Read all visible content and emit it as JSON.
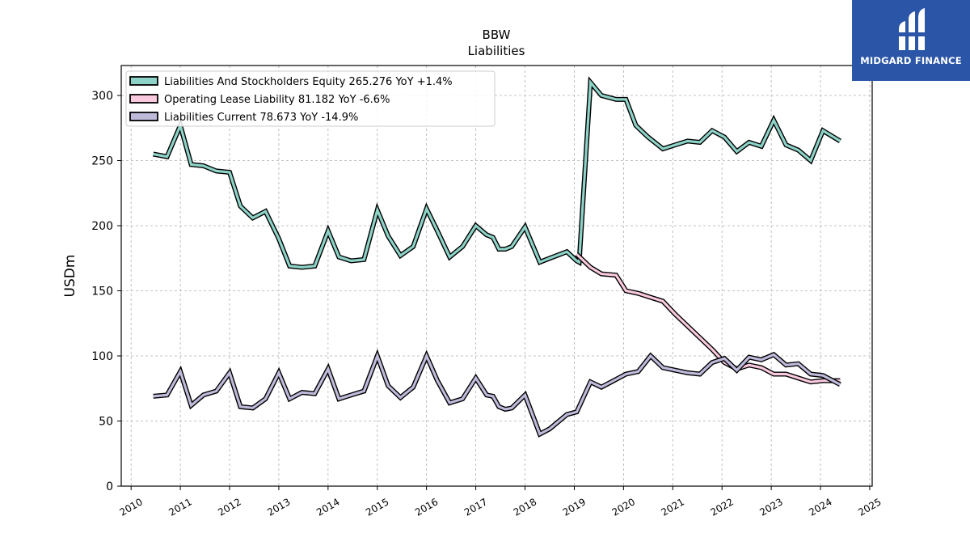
{
  "brand": {
    "name": "MIDGARD FINANCE",
    "icon": "midgard-logo-icon",
    "color": "#2b56a7"
  },
  "chart_data": {
    "type": "line",
    "title": "BBW",
    "subtitle": "Liabilities",
    "xlabel": "",
    "ylabel": "USDm",
    "xlim": [
      2009.8,
      2025.05
    ],
    "ylim": [
      0,
      323
    ],
    "x_ticks": [
      "2010",
      "2011",
      "2012",
      "2013",
      "2014",
      "2015",
      "2016",
      "2017",
      "2018",
      "2019",
      "2020",
      "2021",
      "2022",
      "2023",
      "2024",
      "2025"
    ],
    "y_ticks": [
      "0",
      "50",
      "100",
      "150",
      "200",
      "250",
      "300"
    ],
    "grid": true,
    "legend_position": "top-left",
    "series": [
      {
        "name": "Liabilities And Stockholders Equity  265.276 YoY +1.4%",
        "color": "#8dd3c7",
        "points": [
          [
            2010.45,
            255
          ],
          [
            2010.73,
            253
          ],
          [
            2011.0,
            277
          ],
          [
            2011.22,
            247
          ],
          [
            2011.47,
            246
          ],
          [
            2011.73,
            242
          ],
          [
            2012.0,
            241
          ],
          [
            2012.22,
            215
          ],
          [
            2012.47,
            206
          ],
          [
            2012.73,
            211
          ],
          [
            2013.0,
            190
          ],
          [
            2013.22,
            169
          ],
          [
            2013.47,
            168
          ],
          [
            2013.73,
            169
          ],
          [
            2014.0,
            196
          ],
          [
            2014.22,
            176
          ],
          [
            2014.47,
            173
          ],
          [
            2014.73,
            174
          ],
          [
            2015.0,
            212
          ],
          [
            2015.22,
            192
          ],
          [
            2015.47,
            177
          ],
          [
            2015.73,
            184
          ],
          [
            2016.0,
            213
          ],
          [
            2016.22,
            196
          ],
          [
            2016.47,
            176
          ],
          [
            2016.73,
            184
          ],
          [
            2017.0,
            200
          ],
          [
            2017.22,
            193
          ],
          [
            2017.35,
            191
          ],
          [
            2017.47,
            182
          ],
          [
            2017.6,
            182
          ],
          [
            2017.73,
            184
          ],
          [
            2018.0,
            199
          ],
          [
            2018.3,
            172
          ],
          [
            2018.5,
            175
          ],
          [
            2018.85,
            180
          ],
          [
            2019.05,
            173
          ],
          [
            2019.1,
            172
          ],
          [
            2019.33,
            310
          ],
          [
            2019.55,
            300
          ],
          [
            2019.85,
            297
          ],
          [
            2020.05,
            297
          ],
          [
            2020.25,
            277
          ],
          [
            2020.5,
            268
          ],
          [
            2020.8,
            259
          ],
          [
            2021.05,
            262
          ],
          [
            2021.3,
            265
          ],
          [
            2021.55,
            264
          ],
          [
            2021.8,
            273
          ],
          [
            2022.05,
            268
          ],
          [
            2022.3,
            257
          ],
          [
            2022.55,
            264
          ],
          [
            2022.8,
            261
          ],
          [
            2023.05,
            281
          ],
          [
            2023.3,
            262
          ],
          [
            2023.55,
            258
          ],
          [
            2023.8,
            250
          ],
          [
            2024.05,
            273
          ],
          [
            2024.4,
            265
          ]
        ]
      },
      {
        "name": "Operating Lease Liability  81.182 YoY -6.6%",
        "color": "#f9c9dd",
        "points": [
          [
            2019.05,
            178
          ],
          [
            2019.33,
            168
          ],
          [
            2019.55,
            163
          ],
          [
            2019.85,
            162
          ],
          [
            2020.05,
            150
          ],
          [
            2020.3,
            148
          ],
          [
            2020.55,
            145
          ],
          [
            2020.8,
            142
          ],
          [
            2021.05,
            132
          ],
          [
            2021.3,
            123
          ],
          [
            2021.55,
            114
          ],
          [
            2021.8,
            105
          ],
          [
            2022.05,
            95
          ],
          [
            2022.3,
            90
          ],
          [
            2022.55,
            93
          ],
          [
            2022.8,
            91
          ],
          [
            2023.05,
            86
          ],
          [
            2023.3,
            86
          ],
          [
            2023.55,
            83
          ],
          [
            2023.8,
            80
          ],
          [
            2024.05,
            81
          ],
          [
            2024.4,
            81
          ]
        ]
      },
      {
        "name": "Liabilities Current  78.673 YoY -14.9%",
        "color": "#bebada",
        "points": [
          [
            2010.45,
            69
          ],
          [
            2010.73,
            70
          ],
          [
            2011.0,
            88
          ],
          [
            2011.22,
            62
          ],
          [
            2011.47,
            70
          ],
          [
            2011.73,
            73
          ],
          [
            2012.0,
            87
          ],
          [
            2012.22,
            61
          ],
          [
            2012.47,
            60
          ],
          [
            2012.73,
            67
          ],
          [
            2013.0,
            87
          ],
          [
            2013.22,
            67
          ],
          [
            2013.47,
            72
          ],
          [
            2013.73,
            71
          ],
          [
            2014.0,
            90
          ],
          [
            2014.22,
            67
          ],
          [
            2014.47,
            70
          ],
          [
            2014.73,
            73
          ],
          [
            2015.0,
            100
          ],
          [
            2015.22,
            77
          ],
          [
            2015.47,
            68
          ],
          [
            2015.73,
            76
          ],
          [
            2016.0,
            100
          ],
          [
            2016.22,
            81
          ],
          [
            2016.47,
            64
          ],
          [
            2016.73,
            67
          ],
          [
            2017.0,
            83
          ],
          [
            2017.22,
            70
          ],
          [
            2017.35,
            69
          ],
          [
            2017.47,
            61
          ],
          [
            2017.6,
            59
          ],
          [
            2017.73,
            60
          ],
          [
            2018.0,
            70
          ],
          [
            2018.3,
            40
          ],
          [
            2018.5,
            44
          ],
          [
            2018.85,
            55
          ],
          [
            2019.05,
            57
          ],
          [
            2019.33,
            80
          ],
          [
            2019.55,
            76
          ],
          [
            2019.85,
            82
          ],
          [
            2020.05,
            86
          ],
          [
            2020.3,
            88
          ],
          [
            2020.55,
            100
          ],
          [
            2020.8,
            91
          ],
          [
            2021.05,
            89
          ],
          [
            2021.3,
            87
          ],
          [
            2021.55,
            86
          ],
          [
            2021.8,
            95
          ],
          [
            2022.05,
            98
          ],
          [
            2022.3,
            89
          ],
          [
            2022.55,
            99
          ],
          [
            2022.8,
            97
          ],
          [
            2023.05,
            101
          ],
          [
            2023.3,
            93
          ],
          [
            2023.55,
            94
          ],
          [
            2023.8,
            86
          ],
          [
            2024.05,
            85
          ],
          [
            2024.4,
            78
          ]
        ]
      }
    ]
  }
}
